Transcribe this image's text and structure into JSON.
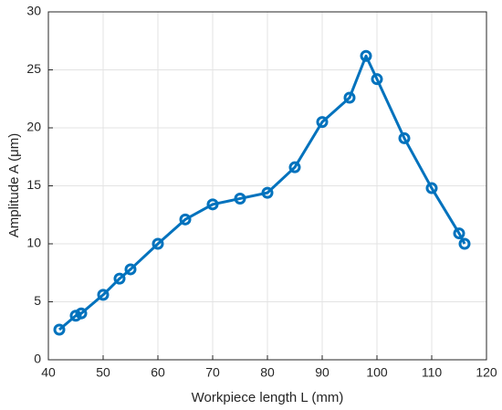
{
  "chart_data": {
    "type": "line",
    "xlabel": "Workpiece length L (mm)",
    "ylabel": "Amplitude A (μm)",
    "x": [
      42,
      45,
      46,
      50,
      53,
      55,
      60,
      65,
      70,
      75,
      80,
      85,
      90,
      95,
      98,
      100,
      105,
      110,
      115,
      116
    ],
    "series": [
      {
        "name": "Amplitude",
        "color": "#0072bd",
        "values": [
          2.6,
          3.8,
          4.0,
          5.6,
          7.0,
          7.8,
          10.0,
          12.1,
          13.4,
          13.9,
          14.4,
          16.6,
          20.5,
          22.6,
          26.2,
          24.2,
          19.1,
          14.8,
          10.9,
          10.0
        ]
      }
    ],
    "xlim": [
      40,
      120
    ],
    "xticks": [
      40,
      50,
      60,
      70,
      80,
      90,
      100,
      110,
      120
    ],
    "ylim": [
      0,
      30
    ],
    "yticks": [
      0,
      5,
      10,
      15,
      20,
      25,
      30
    ],
    "grid": true,
    "markers": true
  }
}
